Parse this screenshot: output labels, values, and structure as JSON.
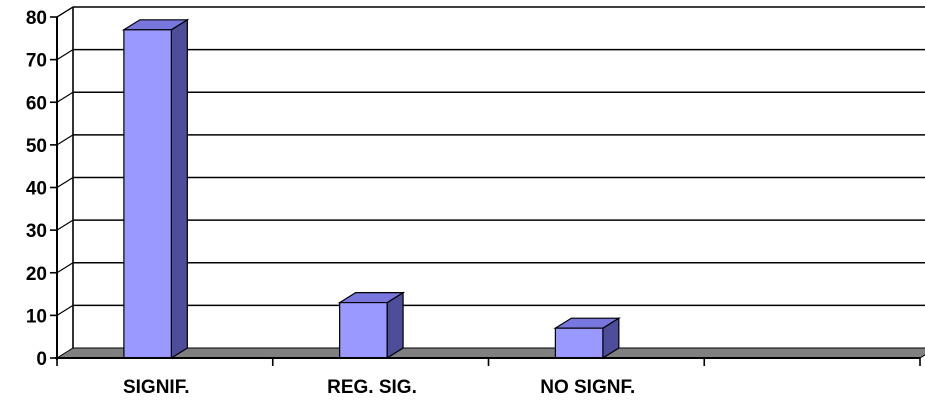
{
  "chart_data": {
    "type": "bar",
    "categories": [
      "SIGNIF.",
      "REG. SIG.",
      "NO SIGNF.",
      ""
    ],
    "values": [
      77,
      13,
      7,
      null
    ],
    "yticks": [
      0,
      10,
      20,
      30,
      40,
      50,
      60,
      70,
      80
    ],
    "ylim": [
      0,
      80
    ],
    "grid": true,
    "three_d": true,
    "colors": {
      "bar_front": "#9999ff",
      "bar_side": "#4d4d99",
      "bar_top": "#7777dd",
      "floor": "#808080",
      "grid": "#000000"
    }
  }
}
